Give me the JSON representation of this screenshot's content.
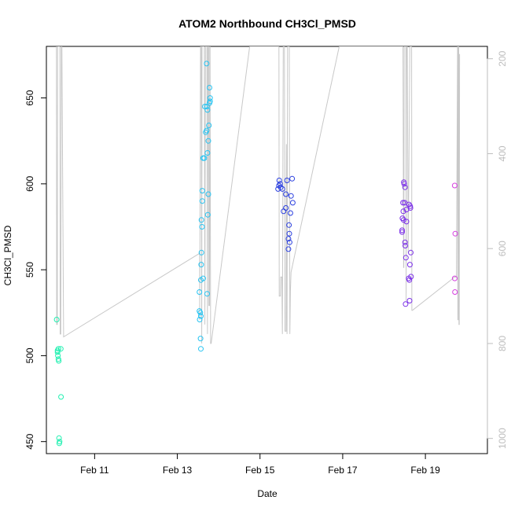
{
  "chart_data": {
    "type": "scatter",
    "title": "ATOM2 Northbound CH3Cl_PMSD",
    "xlabel": "Date",
    "ylabel": "CH3Cl_PMSD",
    "x_ticks": [
      "Feb 11",
      "Feb 13",
      "Feb 15",
      "Feb 17",
      "Feb 19"
    ],
    "y_ticks": [
      450,
      500,
      550,
      600,
      650
    ],
    "y2_ticks": [
      200,
      400,
      600,
      800,
      1000
    ],
    "xlim": [
      "2017-02-09 20:00",
      "2017-02-20 12:00"
    ],
    "ylim": [
      443,
      680
    ],
    "y2lim": [
      1032,
      174
    ],
    "y2_reversed": true,
    "grid": false,
    "series": [
      {
        "color": "#1ff0b0",
        "points": [
          [
            "2017-02-10 02:00",
            521
          ],
          [
            "2017-02-10 02:30",
            503
          ],
          [
            "2017-02-10 02:30",
            502
          ],
          [
            "2017-02-10 02:40",
            500
          ],
          [
            "2017-02-10 03:00",
            504
          ],
          [
            "2017-02-10 03:00",
            498
          ],
          [
            "2017-02-10 03:10",
            497
          ],
          [
            "2017-02-10 03:20",
            452
          ],
          [
            "2017-02-10 03:30",
            449
          ],
          [
            "2017-02-10 03:40",
            450
          ],
          [
            "2017-02-10 04:20",
            504
          ],
          [
            "2017-02-10 04:30",
            476
          ]
        ]
      },
      {
        "color": "#27c4f2",
        "points": [
          [
            "2017-02-13 12:50",
            537
          ],
          [
            "2017-02-13 12:50",
            526
          ],
          [
            "2017-02-13 13:00",
            521
          ],
          [
            "2017-02-13 13:20",
            525
          ],
          [
            "2017-02-13 13:30",
            510
          ],
          [
            "2017-02-13 13:40",
            504
          ],
          [
            "2017-02-13 13:40",
            523
          ],
          [
            "2017-02-13 13:40",
            544
          ],
          [
            "2017-02-13 13:50",
            553
          ],
          [
            "2017-02-13 14:00",
            560
          ],
          [
            "2017-02-13 14:00",
            579
          ],
          [
            "2017-02-13 14:20",
            575
          ],
          [
            "2017-02-13 14:30",
            590
          ],
          [
            "2017-02-13 14:30",
            596
          ],
          [
            "2017-02-13 15:00",
            615
          ],
          [
            "2017-02-13 15:00",
            545
          ],
          [
            "2017-02-13 15:40",
            615
          ],
          [
            "2017-02-13 16:00",
            645
          ],
          [
            "2017-02-13 16:30",
            630
          ],
          [
            "2017-02-13 17:00",
            670
          ],
          [
            "2017-02-13 17:00",
            631
          ],
          [
            "2017-02-13 17:10",
            645
          ],
          [
            "2017-02-13 17:20",
            536
          ],
          [
            "2017-02-13 17:30",
            618
          ],
          [
            "2017-02-13 17:30",
            643
          ],
          [
            "2017-02-13 17:40",
            582
          ],
          [
            "2017-02-13 18:00",
            625
          ],
          [
            "2017-02-13 18:00",
            594
          ],
          [
            "2017-02-13 18:20",
            634
          ],
          [
            "2017-02-13 18:40",
            647
          ],
          [
            "2017-02-13 18:40",
            656
          ],
          [
            "2017-02-13 19:00",
            650
          ],
          [
            "2017-02-13 19:00",
            648
          ]
        ]
      },
      {
        "color": "#2a3fe0",
        "points": [
          [
            "2017-02-15 10:30",
            597
          ],
          [
            "2017-02-15 11:00",
            599
          ],
          [
            "2017-02-15 11:10",
            602
          ],
          [
            "2017-02-15 11:40",
            600
          ],
          [
            "2017-02-15 12:00",
            598
          ],
          [
            "2017-02-15 13:00",
            597
          ],
          [
            "2017-02-15 13:40",
            584
          ],
          [
            "2017-02-15 15:00",
            586
          ],
          [
            "2017-02-15 15:00",
            594
          ],
          [
            "2017-02-15 15:40",
            602
          ],
          [
            "2017-02-15 16:30",
            568
          ],
          [
            "2017-02-15 16:30",
            562
          ],
          [
            "2017-02-15 16:50",
            576
          ],
          [
            "2017-02-15 17:00",
            571
          ],
          [
            "2017-02-15 17:10",
            566
          ],
          [
            "2017-02-15 17:40",
            583
          ],
          [
            "2017-02-15 18:00",
            593
          ],
          [
            "2017-02-15 18:40",
            603
          ],
          [
            "2017-02-15 19:00",
            589
          ]
        ]
      },
      {
        "color": "#7b2fe8",
        "points": [
          [
            "2017-02-18 10:30",
            573
          ],
          [
            "2017-02-18 10:30",
            572
          ],
          [
            "2017-02-18 10:40",
            580
          ],
          [
            "2017-02-18 11:00",
            589
          ],
          [
            "2017-02-18 11:10",
            584
          ],
          [
            "2017-02-18 11:20",
            579
          ],
          [
            "2017-02-18 11:30",
            601
          ],
          [
            "2017-02-18 11:40",
            600
          ],
          [
            "2017-02-18 12:00",
            589
          ],
          [
            "2017-02-18 12:10",
            566
          ],
          [
            "2017-02-18 12:10",
            598
          ],
          [
            "2017-02-18 12:20",
            564
          ],
          [
            "2017-02-18 12:30",
            530
          ],
          [
            "2017-02-18 12:40",
            557
          ],
          [
            "2017-02-18 13:00",
            585
          ],
          [
            "2017-02-18 13:00",
            578
          ],
          [
            "2017-02-18 14:20",
            545
          ],
          [
            "2017-02-18 14:30",
            588
          ],
          [
            "2017-02-18 14:40",
            544
          ],
          [
            "2017-02-18 14:50",
            532
          ],
          [
            "2017-02-18 15:00",
            553
          ],
          [
            "2017-02-18 15:10",
            587
          ],
          [
            "2017-02-18 15:20",
            586
          ],
          [
            "2017-02-18 15:30",
            560
          ],
          [
            "2017-02-18 15:40",
            546
          ]
        ]
      },
      {
        "color": "#d63fe0",
        "points": [
          [
            "2017-02-19 17:00",
            599
          ],
          [
            "2017-02-19 17:00",
            545
          ],
          [
            "2017-02-19 17:10",
            537
          ],
          [
            "2017-02-19 17:20",
            571
          ]
        ]
      }
    ],
    "altitude_trace": {
      "color": "#c8c8c8",
      "axis": "y2",
      "points": [
        [
          "2017-02-10 01:50",
          174
        ],
        [
          "2017-02-10 02:00",
          760
        ],
        [
          "2017-02-10 02:20",
          760
        ],
        [
          "2017-02-10 02:30",
          174
        ],
        [
          "2017-02-10 03:50",
          174
        ],
        [
          "2017-02-10 04:00",
          780
        ],
        [
          "2017-02-10 04:20",
          780
        ],
        [
          "2017-02-10 04:40",
          174
        ],
        [
          "2017-02-10 05:00",
          174
        ],
        [
          "2017-02-10 06:00",
          786
        ],
        [
          "2017-02-13 13:00",
          610
        ],
        [
          "2017-02-13 13:00",
          750
        ],
        [
          "2017-02-13 13:30",
          174
        ],
        [
          "2017-02-13 13:50",
          174
        ],
        [
          "2017-02-13 14:10",
          800
        ],
        [
          "2017-02-13 14:20",
          174
        ],
        [
          "2017-02-13 15:40",
          174
        ],
        [
          "2017-02-13 16:00",
          760
        ],
        [
          "2017-02-13 16:20",
          174
        ],
        [
          "2017-02-13 17:10",
          174
        ],
        [
          "2017-02-13 17:30",
          780
        ],
        [
          "2017-02-13 17:40",
          174
        ],
        [
          "2017-02-13 18:10",
          174
        ],
        [
          "2017-02-13 18:20",
          720
        ],
        [
          "2017-02-13 18:40",
          720
        ],
        [
          "2017-02-13 18:50",
          174
        ],
        [
          "2017-02-13 19:00",
          174
        ],
        [
          "2017-02-13 19:20",
          800
        ],
        [
          "2017-02-13 19:40",
          800
        ],
        [
          "2017-02-14 18:00",
          174
        ],
        [
          "2017-02-15 11:00",
          174
        ],
        [
          "2017-02-15 11:10",
          700
        ],
        [
          "2017-02-15 11:50",
          700
        ],
        [
          "2017-02-15 12:00",
          660
        ],
        [
          "2017-02-15 12:40",
          660
        ],
        [
          "2017-02-15 13:00",
          780
        ],
        [
          "2017-02-15 13:30",
          174
        ],
        [
          "2017-02-15 14:10",
          174
        ],
        [
          "2017-02-15 14:30",
          774
        ],
        [
          "2017-02-15 15:10",
          774
        ],
        [
          "2017-02-15 15:20",
          380
        ],
        [
          "2017-02-15 15:40",
          780
        ],
        [
          "2017-02-15 16:00",
          174
        ],
        [
          "2017-02-15 17:00",
          174
        ],
        [
          "2017-02-15 17:20",
          780
        ],
        [
          "2017-02-15 17:40",
          690
        ],
        [
          "2017-02-15 18:00",
          650
        ],
        [
          "2017-02-16 22:00",
          174
        ],
        [
          "2017-02-18 11:00",
          174
        ],
        [
          "2017-02-18 11:20",
          640
        ],
        [
          "2017-02-18 11:30",
          640
        ],
        [
          "2017-02-18 11:40",
          174
        ],
        [
          "2017-02-18 12:40",
          174
        ],
        [
          "2017-02-18 12:50",
          710
        ],
        [
          "2017-02-18 13:00",
          174
        ],
        [
          "2017-02-18 13:30",
          174
        ],
        [
          "2017-02-18 14:00",
          610
        ],
        [
          "2017-02-18 15:00",
          174
        ],
        [
          "2017-02-18 16:00",
          174
        ],
        [
          "2017-02-18 16:10",
          730
        ],
        [
          "2017-02-18 16:30",
          730
        ],
        [
          "2017-02-19 17:00",
          660
        ],
        [
          "2017-02-19 18:00",
          660
        ],
        [
          "2017-02-19 18:40",
          174
        ],
        [
          "2017-02-19 18:50",
          750
        ],
        [
          "2017-02-19 19:00",
          750
        ],
        [
          "2017-02-19 19:00",
          174
        ],
        [
          "2017-02-19 19:20",
          174
        ],
        [
          "2017-02-19 19:30",
          760
        ],
        [
          "2017-02-19 19:40",
          760
        ],
        [
          "2017-02-19 19:50",
          190
        ]
      ]
    }
  }
}
